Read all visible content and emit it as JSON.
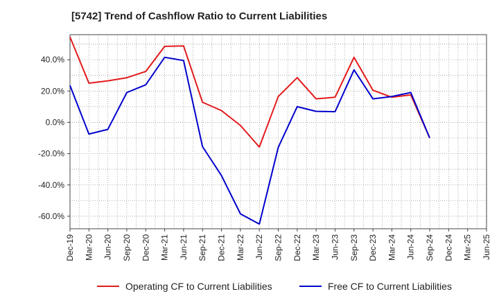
{
  "chart_data": {
    "type": "line",
    "title": "[5742]  Trend of Cashflow Ratio to Current Liabilities",
    "x": [
      "Dec-19",
      "Mar-20",
      "Jun-20",
      "Sep-20",
      "Dec-20",
      "Mar-21",
      "Jun-21",
      "Sep-21",
      "Dec-21",
      "Mar-22",
      "Jun-22",
      "Sep-22",
      "Dec-22",
      "Mar-23",
      "Jun-23",
      "Sep-23",
      "Dec-23",
      "Mar-24",
      "Jun-24",
      "Sep-24",
      "Dec-24",
      "Mar-25"
    ],
    "x_tick_labels": [
      "Dec-19",
      "Mar-20",
      "Jun-20",
      "Sep-20",
      "Dec-20",
      "Mar-21",
      "Jun-21",
      "Sep-21",
      "Dec-21",
      "Mar-22",
      "Jun-22",
      "Sep-22",
      "Dec-22",
      "Mar-23",
      "Jun-23",
      "Sep-23",
      "Dec-23",
      "Mar-24",
      "Jun-24",
      "Sep-24",
      "Dec-24",
      "Mar-25",
      "Jun-25"
    ],
    "series": [
      {
        "name": "Operating CF to Current Liabilities",
        "color": "#e31a1c",
        "values": [
          54.5,
          25.0,
          26.5,
          28.5,
          32.5,
          48.5,
          48.8,
          12.8,
          7.5,
          -2.0,
          -15.8,
          16.5,
          28.5,
          15.0,
          16.0,
          41.5,
          20.5,
          16.0,
          17.5,
          -10.0,
          null,
          null
        ]
      },
      {
        "name": "Free CF to Current Liabilities",
        "color": "#0000cc",
        "values": [
          23.5,
          -7.5,
          -4.5,
          19.0,
          24.0,
          41.5,
          39.5,
          -15.5,
          -34.0,
          -58.5,
          -65.0,
          -16.0,
          10.0,
          7.0,
          6.8,
          33.5,
          15.0,
          16.5,
          19.0,
          -10.0,
          null,
          null
        ]
      }
    ],
    "ylim": [
      -68,
      56
    ],
    "y_ticks": [
      40,
      20,
      0,
      -20,
      -40,
      -60
    ],
    "y_tick_labels": [
      "40.0%",
      "20.0%",
      "0.0%",
      "-20.0%",
      "-40.0%",
      "-60.0%"
    ],
    "grid": true,
    "legend_position": "bottom"
  }
}
